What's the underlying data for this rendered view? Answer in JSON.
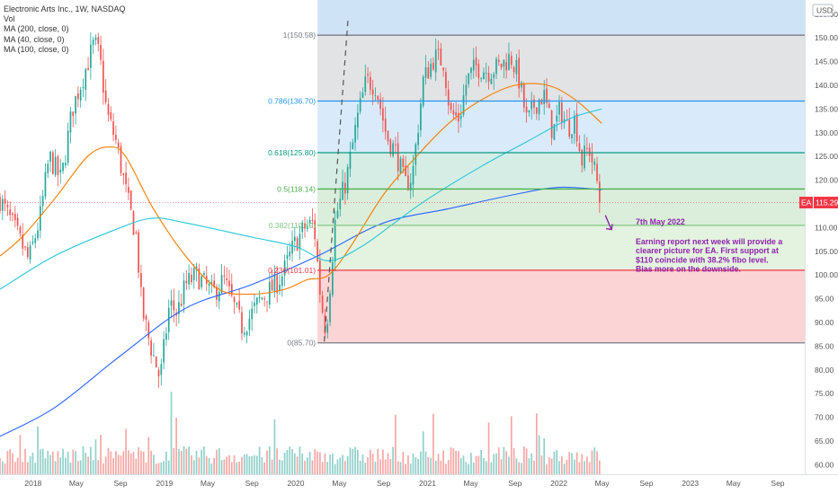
{
  "header": {
    "title": "Electronic Arts Inc., 1W, NASDAQ",
    "vol_label": "Vol",
    "ma_labels": [
      "MA (200, close, 0)",
      "MA (40, close, 0)",
      "MA (100, close, 0)"
    ]
  },
  "currency": "USD",
  "price_tag": {
    "symbol": "EA",
    "value": "115.29",
    "price": 115.29,
    "color": "#f23645"
  },
  "annotation": {
    "title": "7th May 2022",
    "lines": [
      "Earning report next week will provide a",
      "clearer picture for EA. First support at",
      "$110 coincide with 38.2% fibo level.",
      "Bias more on the downside."
    ],
    "color": "#8e24aa"
  },
  "colors": {
    "up": "#26a69a",
    "down": "#ef5350",
    "ma200": "#2962ff",
    "ma40": "#f57c00",
    "ma100": "#26c6da"
  },
  "chart_data": {
    "type": "candlestick",
    "symbol": "EA",
    "exchange": "NASDAQ",
    "interval": "1W",
    "ylim": [
      58,
      158
    ],
    "y_ticks": [
      60,
      65,
      70,
      75,
      80,
      85,
      90,
      95,
      100,
      105,
      110,
      115,
      120,
      125,
      130,
      135,
      140,
      145,
      150,
      155
    ],
    "y_tick_labels": [
      "60.00",
      "65.00",
      "70.00",
      "75.00",
      "80.00",
      "85.00",
      "90.00",
      "95.00",
      "100.00",
      "105.00",
      "110.00",
      "115.00",
      "120.00",
      "125.00",
      "130.00",
      "135.00",
      "140.00",
      "145.00",
      "150.00",
      "155.00"
    ],
    "x_range": [
      "2017-10-01",
      "2023-11-15"
    ],
    "x_ticks": [
      {
        "date": "2018-01-01",
        "label": "2018"
      },
      {
        "date": "2018-05-01",
        "label": "May"
      },
      {
        "date": "2018-09-01",
        "label": "Sep"
      },
      {
        "date": "2019-01-01",
        "label": "2019"
      },
      {
        "date": "2019-05-01",
        "label": "May"
      },
      {
        "date": "2019-09-01",
        "label": "Sep"
      },
      {
        "date": "2020-01-01",
        "label": "2020"
      },
      {
        "date": "2020-05-01",
        "label": "May"
      },
      {
        "date": "2020-09-01",
        "label": "Sep"
      },
      {
        "date": "2021-01-01",
        "label": "2021"
      },
      {
        "date": "2021-05-01",
        "label": "May"
      },
      {
        "date": "2021-09-01",
        "label": "Sep"
      },
      {
        "date": "2022-01-01",
        "label": "2022"
      },
      {
        "date": "2022-05-01",
        "label": "May"
      },
      {
        "date": "2022-09-01",
        "label": "Sep"
      },
      {
        "date": "2023-01-01",
        "label": "2023"
      },
      {
        "date": "2023-05-01",
        "label": "May"
      },
      {
        "date": "2023-09-01",
        "label": "Sep"
      }
    ],
    "price_path": [
      [
        "2017-10-01",
        116
      ],
      [
        "2017-11-15",
        109
      ],
      [
        "2017-12-20",
        103
      ],
      [
        "2018-01-20",
        112
      ],
      [
        "2018-02-15",
        125
      ],
      [
        "2018-03-20",
        120
      ],
      [
        "2018-04-20",
        135
      ],
      [
        "2018-05-25",
        143
      ],
      [
        "2018-06-20",
        149
      ],
      [
        "2018-07-05",
        146
      ],
      [
        "2018-07-25",
        134
      ],
      [
        "2018-08-20",
        128
      ],
      [
        "2018-09-20",
        116
      ],
      [
        "2018-10-15",
        108
      ],
      [
        "2018-10-30",
        93
      ],
      [
        "2018-11-20",
        86
      ],
      [
        "2018-12-20",
        78
      ],
      [
        "2019-01-15",
        94
      ],
      [
        "2019-02-05",
        92
      ],
      [
        "2019-03-01",
        98
      ],
      [
        "2019-04-01",
        100
      ],
      [
        "2019-05-15",
        96
      ],
      [
        "2019-06-15",
        99
      ],
      [
        "2019-07-15",
        93
      ],
      [
        "2019-08-05",
        89
      ],
      [
        "2019-08-25",
        91
      ],
      [
        "2019-09-25",
        95
      ],
      [
        "2019-10-25",
        97
      ],
      [
        "2019-11-25",
        100
      ],
      [
        "2019-12-25",
        106
      ],
      [
        "2020-01-25",
        110
      ],
      [
        "2020-02-20",
        111
      ],
      [
        "2020-03-10",
        95
      ],
      [
        "2020-03-25",
        88
      ],
      [
        "2020-04-20",
        112
      ],
      [
        "2020-05-20",
        120
      ],
      [
        "2020-06-20",
        133
      ],
      [
        "2020-07-15",
        141
      ],
      [
        "2020-08-10",
        140
      ],
      [
        "2020-09-10",
        129
      ],
      [
        "2020-10-05",
        126
      ],
      [
        "2020-10-30",
        119
      ],
      [
        "2020-11-20",
        121
      ],
      [
        "2020-12-20",
        141
      ],
      [
        "2021-01-20",
        146
      ],
      [
        "2021-02-15",
        145
      ],
      [
        "2021-03-05",
        134
      ],
      [
        "2021-03-30",
        133
      ],
      [
        "2021-04-20",
        141
      ],
      [
        "2021-05-15",
        144
      ],
      [
        "2021-06-20",
        143
      ],
      [
        "2021-07-20",
        144
      ],
      [
        "2021-08-20",
        146
      ],
      [
        "2021-09-10",
        142
      ],
      [
        "2021-10-05",
        132
      ],
      [
        "2021-10-25",
        136
      ],
      [
        "2021-11-20",
        138
      ],
      [
        "2021-12-15",
        130
      ],
      [
        "2022-01-05",
        135
      ],
      [
        "2022-01-25",
        131
      ],
      [
        "2022-02-15",
        133
      ],
      [
        "2022-03-05",
        124
      ],
      [
        "2022-03-25",
        127
      ],
      [
        "2022-04-10",
        122
      ],
      [
        "2022-04-30",
        115.3
      ]
    ],
    "series": [
      {
        "name": "MA (200, close, 0)",
        "color": "#2962ff",
        "points": [
          [
            "2017-10-01",
            66
          ],
          [
            "2018-03-01",
            72
          ],
          [
            "2018-09-01",
            83
          ],
          [
            "2019-03-01",
            93
          ],
          [
            "2019-09-01",
            98
          ],
          [
            "2020-03-01",
            104
          ],
          [
            "2020-09-01",
            111
          ],
          [
            "2021-03-01",
            114
          ],
          [
            "2021-09-01",
            117
          ],
          [
            "2022-01-01",
            118.5
          ],
          [
            "2022-04-30",
            118
          ]
        ]
      },
      {
        "name": "MA (40, close, 0)",
        "color": "#f57c00",
        "points": [
          [
            "2017-10-01",
            104
          ],
          [
            "2017-12-01",
            108
          ],
          [
            "2018-03-01",
            116
          ],
          [
            "2018-06-01",
            125
          ],
          [
            "2018-08-01",
            127
          ],
          [
            "2018-09-15",
            125
          ],
          [
            "2018-12-01",
            114
          ],
          [
            "2019-03-01",
            104
          ],
          [
            "2019-06-01",
            97
          ],
          [
            "2019-09-01",
            96
          ],
          [
            "2019-12-01",
            97
          ],
          [
            "2020-02-01",
            99
          ],
          [
            "2020-04-01",
            100
          ],
          [
            "2020-06-01",
            106
          ],
          [
            "2020-09-01",
            117
          ],
          [
            "2020-12-01",
            125
          ],
          [
            "2021-03-01",
            132
          ],
          [
            "2021-06-01",
            137
          ],
          [
            "2021-09-01",
            140
          ],
          [
            "2021-12-01",
            140
          ],
          [
            "2022-02-15",
            137
          ],
          [
            "2022-04-30",
            132
          ]
        ]
      },
      {
        "name": "MA (100, close, 0)",
        "color": "#26c6da",
        "points": [
          [
            "2017-10-01",
            97
          ],
          [
            "2018-03-01",
            104
          ],
          [
            "2018-09-01",
            110
          ],
          [
            "2018-12-01",
            112
          ],
          [
            "2019-03-01",
            111
          ],
          [
            "2019-09-01",
            108
          ],
          [
            "2020-01-01",
            106
          ],
          [
            "2020-04-01",
            103
          ],
          [
            "2020-07-01",
            106
          ],
          [
            "2020-10-01",
            111
          ],
          [
            "2021-01-01",
            116
          ],
          [
            "2021-06-01",
            123
          ],
          [
            "2021-10-01",
            128
          ],
          [
            "2022-02-01",
            133
          ],
          [
            "2022-04-30",
            135
          ]
        ]
      }
    ],
    "fibonacci": {
      "start_date": "2020-03-01",
      "levels": [
        {
          "ratio": 1,
          "price": 150.58,
          "label": "1(150.58)",
          "color": "#787b86",
          "fill": "#e2e3e5"
        },
        {
          "ratio": 0.786,
          "price": 136.7,
          "label": "0.786(136.70)",
          "color": "#2196f3",
          "fill": "#d9ebfa"
        },
        {
          "ratio": 0.618,
          "price": 125.8,
          "label": "0.618(125.80)",
          "color": "#089981",
          "fill": "#d6ede5"
        },
        {
          "ratio": 0.5,
          "price": 118.14,
          "label": "0.5(118.14)",
          "color": "#4caf50",
          "fill": "#dbeedb"
        },
        {
          "ratio": 0.382,
          "price": 110.49,
          "label": "0.382(110.49)",
          "color": "#81c784",
          "fill": "#e4f3e0"
        },
        {
          "ratio": 0.236,
          "price": 101.01,
          "label": "0.236(101.01)",
          "color": "#f23645",
          "fill": "#fbd5d6"
        },
        {
          "ratio": 0,
          "price": 85.7,
          "label": "0(85.70)",
          "color": "#787b86",
          "fill": null
        }
      ]
    },
    "fib_top_fill": "#cfe3f7",
    "trend_line": {
      "from": [
        "2020-03-20",
        86
      ],
      "to": [
        "2020-05-25",
        154
      ]
    },
    "arrow": {
      "from": [
        "2022-05-10",
        112.6
      ],
      "to": [
        "2022-05-27",
        109.6
      ]
    },
    "volume_max": 100,
    "grid": false,
    "legend": "top-left"
  }
}
